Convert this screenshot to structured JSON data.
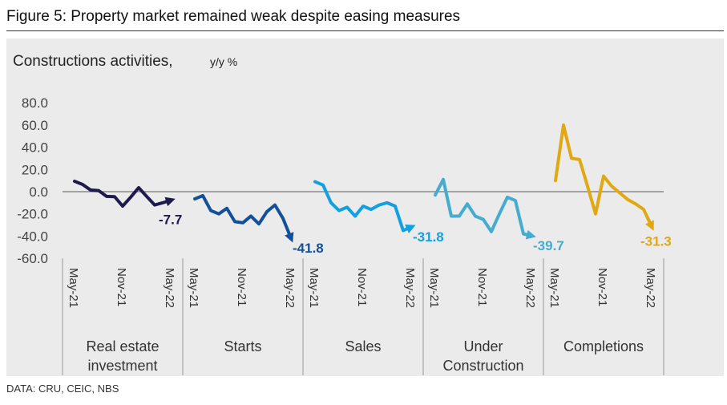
{
  "title": "Figure 5: Property market remained weak despite easing measures",
  "source": "DATA: CRU, CEIC, NBS",
  "chart_data": {
    "type": "line",
    "subtitle": "Constructions activities,",
    "unit": "y/y %",
    "ylim": [
      -60,
      80
    ],
    "yticks": [
      "80.0",
      "60.0",
      "40.0",
      "20.0",
      "0.0",
      "-20.0",
      "-40.0",
      "-60.0"
    ],
    "ytick_values": [
      80,
      60,
      40,
      20,
      0,
      -20,
      -40,
      -60
    ],
    "grid": false,
    "x_tick_labels": [
      "May-21",
      "Nov-21",
      "May-22"
    ],
    "months": [
      "May-21",
      "Jun-21",
      "Jul-21",
      "Aug-21",
      "Sep-21",
      "Oct-21",
      "Nov-21",
      "Dec-21",
      "Jan-22",
      "Feb-22",
      "Mar-22",
      "Apr-22",
      "May-22"
    ],
    "series": [
      {
        "group_label": [
          "Real estate",
          "investment"
        ],
        "color": "#1f1a4d",
        "end_label": "-7.7",
        "values": [
          9.4,
          6.5,
          1.5,
          1.0,
          -4.2,
          -4.5,
          -13.0,
          -5.0,
          3.6,
          -4.3,
          -12.0,
          -10.0,
          -7.7
        ]
      },
      {
        "group_label": [
          "Starts"
        ],
        "color": "#12509a",
        "end_label": "-41.8",
        "values": [
          -6.5,
          -3.6,
          -17.0,
          -20.0,
          -15.0,
          -27.0,
          -28.0,
          -22.0,
          -29.0,
          -18.0,
          -12.0,
          -24.0,
          -41.8
        ]
      },
      {
        "group_label": [
          "Sales"
        ],
        "color": "#12a0e0",
        "end_label": "-31.8",
        "values": [
          9.0,
          6.0,
          -10.0,
          -17.0,
          -14.0,
          -22.0,
          -13.0,
          -16.0,
          -12.0,
          -10.0,
          -13.0,
          -35.0,
          -31.8
        ]
      },
      {
        "group_label": [
          "Under",
          "Construction"
        ],
        "color": "#45acd0",
        "end_label": "-39.7",
        "values": [
          -3.0,
          11.0,
          -22.0,
          -22.0,
          -11.0,
          -22.0,
          -25.0,
          -36.0,
          -20.0,
          -5.0,
          -8.0,
          -38.0,
          -39.7
        ]
      },
      {
        "group_label": [
          "Completions"
        ],
        "color": "#e0a812",
        "end_label": "-31.3",
        "values": [
          10.0,
          60.0,
          30.0,
          29.0,
          5.0,
          -20.0,
          14.0,
          5.0,
          -1.0,
          -7.0,
          -11.0,
          -16.0,
          -31.3
        ]
      }
    ]
  }
}
